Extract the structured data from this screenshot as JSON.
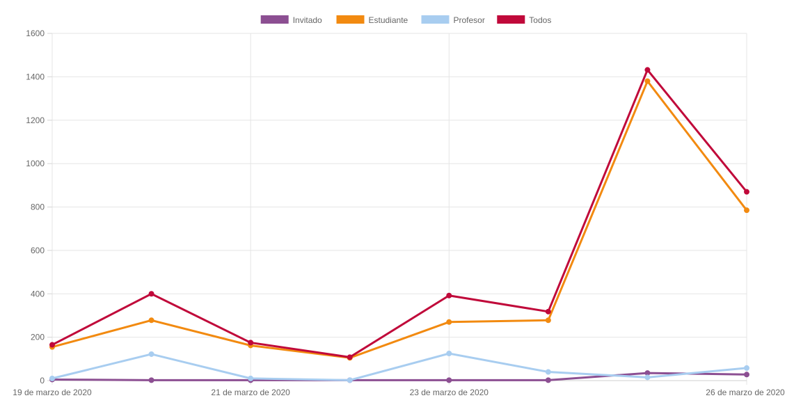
{
  "chart_data": {
    "type": "line",
    "title": "",
    "xlabel": "",
    "ylabel": "",
    "x": [
      "19 de marzo de 2020",
      "",
      "21 de marzo de 2020",
      "",
      "23 de marzo de 2020",
      "",
      "",
      "26 de marzo de 2020"
    ],
    "x_tick_labels": [
      "19 de marzo de 2020",
      "21 de marzo de 2020",
      "23 de marzo de 2020",
      "26 de marzo de 2020"
    ],
    "x_tick_indices": [
      0,
      2,
      4,
      7
    ],
    "y_ticks": [
      0,
      200,
      400,
      600,
      800,
      1000,
      1200,
      1400,
      1600
    ],
    "ylim": [
      0,
      1600
    ],
    "grid": true,
    "legend_position": "top",
    "series": [
      {
        "name": "Invitado",
        "color": "#8c4f92",
        "values": [
          5,
          2,
          2,
          2,
          2,
          2,
          35,
          28
        ]
      },
      {
        "name": "Estudiante",
        "color": "#f28a10",
        "values": [
          155,
          278,
          162,
          105,
          270,
          278,
          1380,
          785
        ]
      },
      {
        "name": "Profesor",
        "color": "#a8cdf0",
        "values": [
          10,
          122,
          10,
          2,
          125,
          40,
          15,
          58
        ]
      },
      {
        "name": "Todos",
        "color": "#c0093a",
        "values": [
          165,
          400,
          175,
          108,
          392,
          318,
          1432,
          870
        ]
      }
    ]
  }
}
